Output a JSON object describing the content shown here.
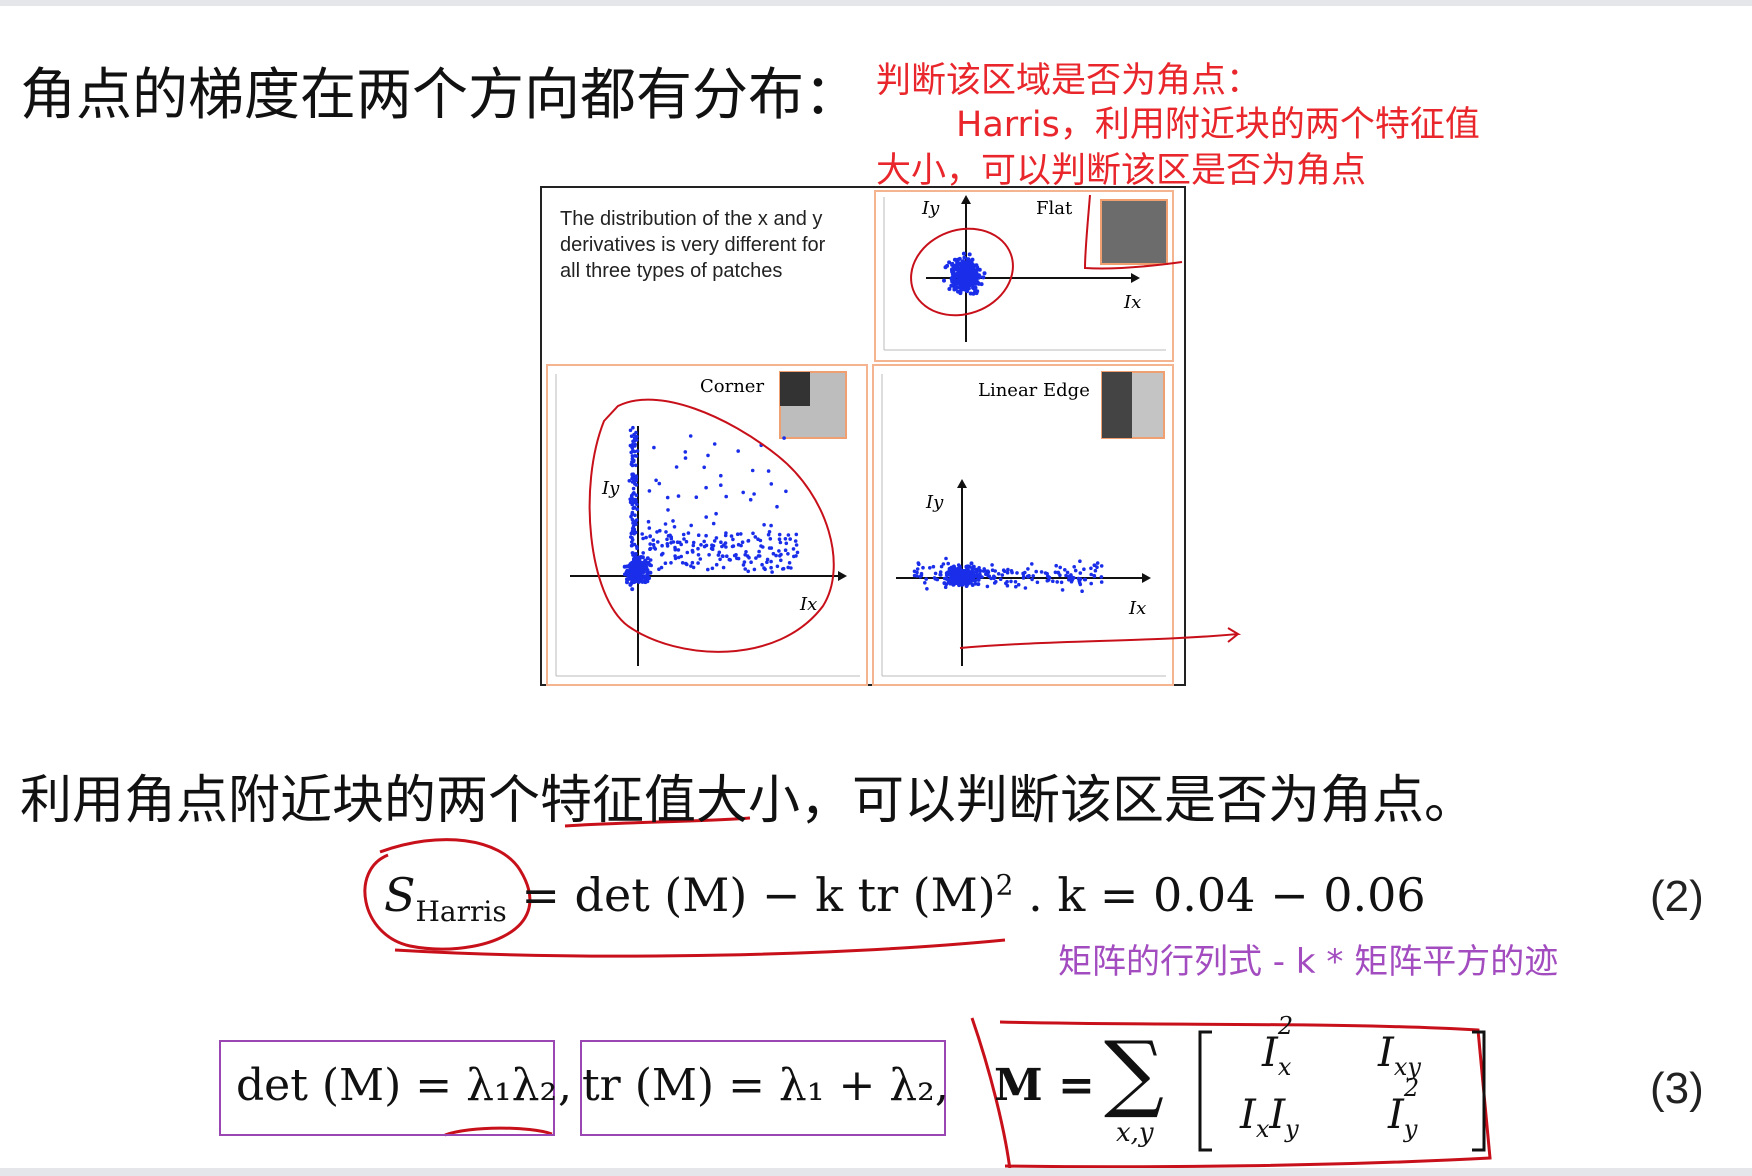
{
  "heading1": "角点的梯度在两个方向都有分布：",
  "annotation": {
    "line1": "判断该区域是否为角点：",
    "line2": "Harris，利用附近块的两个特征值",
    "line3": "大小，可以判断该区是否为角点"
  },
  "figure": {
    "caption": "The distribution of the x and y derivatives is very different for all three types of patches",
    "panels": [
      {
        "label": "Flat",
        "x_axis": "Ix",
        "y_axis": "Iy"
      },
      {
        "label": "Corner",
        "x_axis": "Ix",
        "y_axis": "Iy"
      },
      {
        "label": "Linear Edge",
        "x_axis": "Ix",
        "y_axis": "Iy"
      }
    ]
  },
  "heading2": "利用角点附近块的两个特征值大小，可以判断该区是否为角点。",
  "equation2": {
    "lhs": "S",
    "lhs_sub": "Harris",
    "rhs": "= det (M) − k tr (M)",
    "rhs_sup": "2",
    "param": ".   k = 0.04 − 0.06",
    "number": "(2)"
  },
  "note2": "矩阵的行列式 - k * 矩阵平方的迹",
  "equation3": {
    "det": "det (M) = λ₁λ₂",
    "sep": ",",
    "tr": "tr (M) = λ₁ + λ₂,",
    "m_lhs": "M =",
    "sum": "∑",
    "sum_sub": "x,y",
    "m11": "I",
    "m11_sub": "x",
    "m11_sup": "2",
    "m12": "I",
    "m12_sub": "xy",
    "m21": "I",
    "m21_sub1": "x",
    "m21b": "I",
    "m21_sub2": "y",
    "m22": "I",
    "m22_sub": "y",
    "m22_sup": "2",
    "number": "(3)"
  }
}
